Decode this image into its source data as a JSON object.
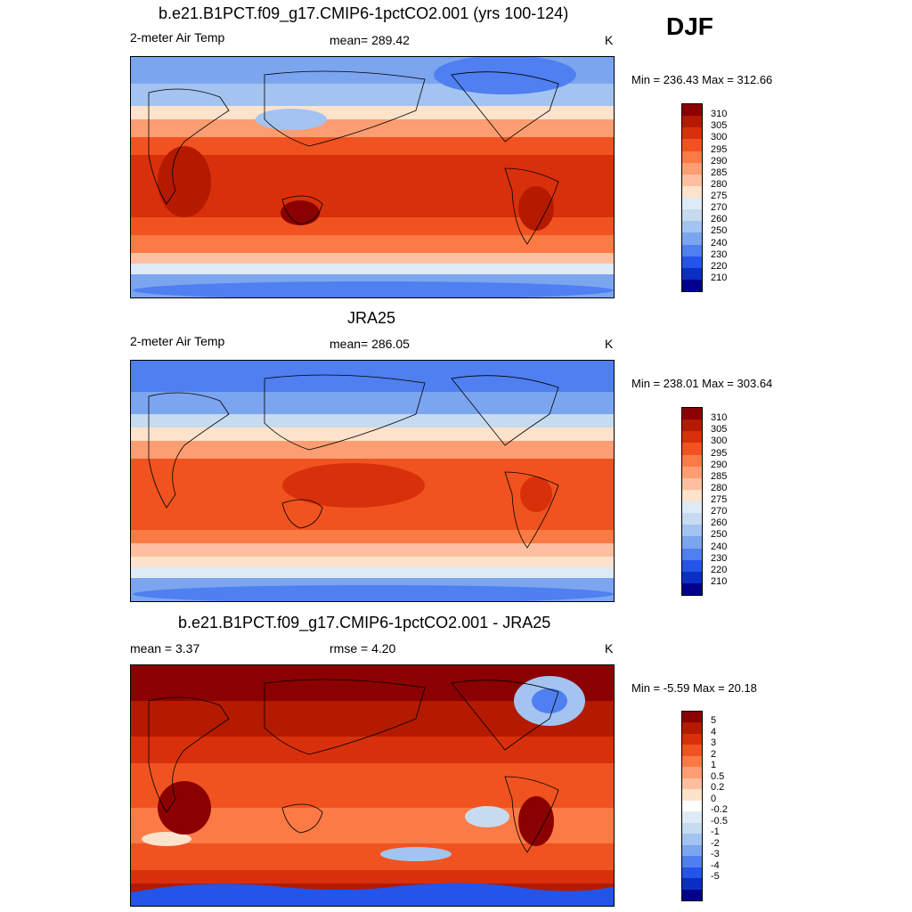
{
  "season": "DJF",
  "panels": [
    {
      "title": "b.e21.B1PCT.f09_g17.CMIP6-1pctCO2.001 (yrs 100-124)",
      "left_label": "2-meter Air Temp",
      "center_label": "mean= 289.42",
      "unit": "K",
      "minmax": "Min = 236.43 Max = 312.66",
      "colorbar_labels": [
        "310",
        "305",
        "300",
        "295",
        "290",
        "285",
        "280",
        "275",
        "270",
        "260",
        "250",
        "240",
        "230",
        "220",
        "210"
      ]
    },
    {
      "title": "JRA25",
      "left_label": "2-meter Air Temp",
      "center_label": "mean= 286.05",
      "unit": "K",
      "minmax": "Min = 238.01 Max = 303.64",
      "colorbar_labels": [
        "310",
        "305",
        "300",
        "295",
        "290",
        "285",
        "280",
        "275",
        "270",
        "260",
        "250",
        "240",
        "230",
        "220",
        "210"
      ]
    },
    {
      "title": "b.e21.B1PCT.f09_g17.CMIP6-1pctCO2.001 - JRA25",
      "left_label": "mean =   3.37",
      "center_label": "rmse =   4.20",
      "unit": "K",
      "minmax": "Min =  -5.59 Max =  20.18",
      "colorbar_labels": [
        "5",
        "4",
        "3",
        "2",
        "1",
        "0.5",
        "0.2",
        "0",
        "-0.2",
        "-0.5",
        "-1",
        "-2",
        "-3",
        "-4",
        "-5"
      ]
    }
  ],
  "colors": {
    "temp_scale": [
      "#8b0000",
      "#b31a00",
      "#d8300a",
      "#f0531f",
      "#fb7a45",
      "#fc9d72",
      "#fdbf9f",
      "#fde2cc",
      "#deebf7",
      "#c6dbef",
      "#a3c4f1",
      "#7ca5f0",
      "#4f7ff0",
      "#2454e8",
      "#0b2fc2",
      "#00008b"
    ],
    "diff_scale": [
      "#8b0000",
      "#b31a00",
      "#d8300a",
      "#f0531f",
      "#fb7a45",
      "#fc9d72",
      "#fdbf9f",
      "#fde2cc",
      "#ffffff",
      "#deebf7",
      "#c6dbef",
      "#a3c4f1",
      "#7ca5f0",
      "#4f7ff0",
      "#2454e8",
      "#0b2fc2",
      "#00008b"
    ]
  }
}
